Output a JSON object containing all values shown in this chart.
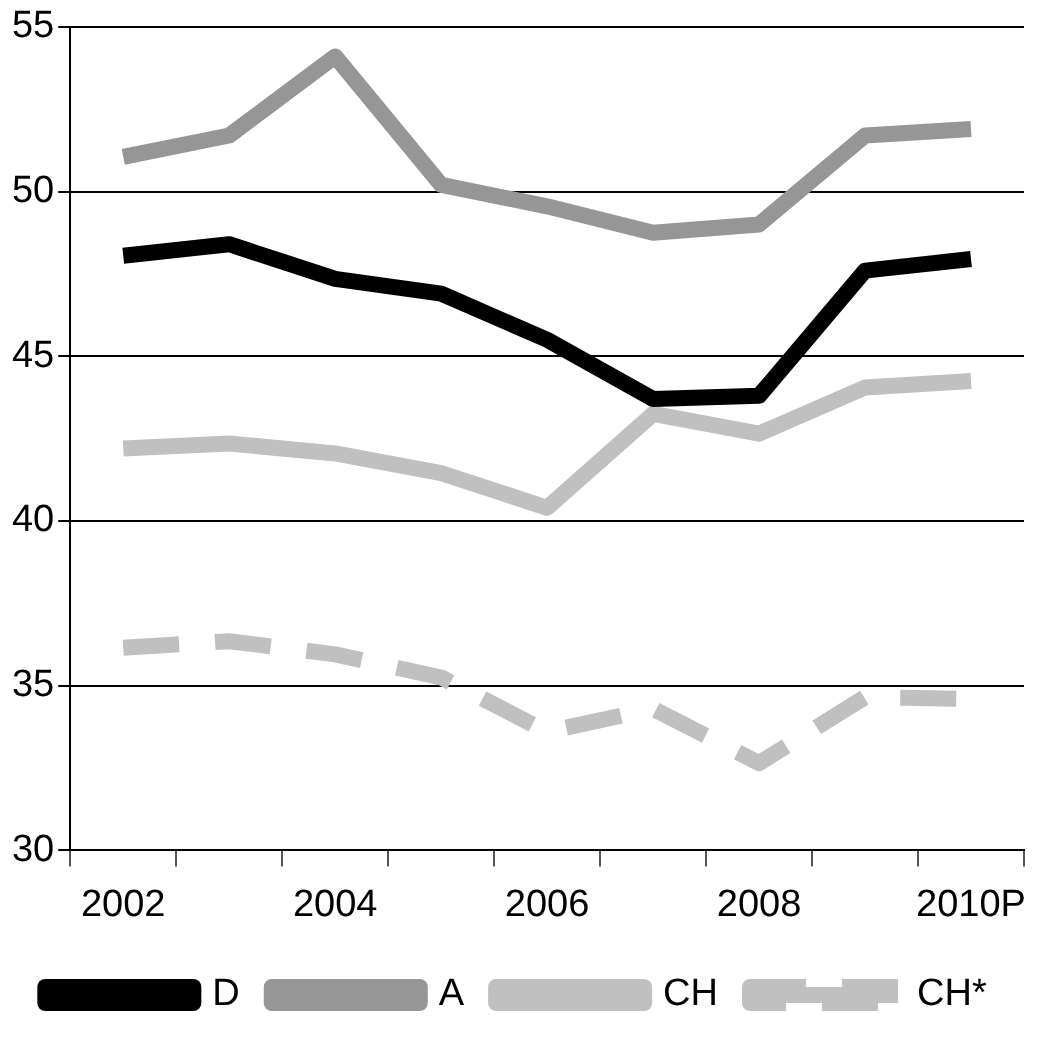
{
  "chart_data": {
    "type": "line",
    "categories": [
      "2002",
      null,
      "2004",
      null,
      "2006",
      null,
      "2008",
      null,
      "2010P"
    ],
    "series": [
      {
        "name": "D",
        "color": "#000000",
        "values": [
          48.05,
          48.4,
          47.35,
          46.9,
          45.5,
          43.7,
          43.8,
          47.6,
          47.95
        ]
      },
      {
        "name": "A",
        "color": "#969696",
        "values": [
          51.05,
          51.7,
          54.1,
          50.2,
          49.55,
          48.75,
          49.0,
          51.7,
          51.9
        ]
      },
      {
        "name": "CH",
        "color": "#c0c0c0",
        "values": [
          42.2,
          42.35,
          42.05,
          41.45,
          40.4,
          43.25,
          42.65,
          44.05,
          44.25
        ]
      },
      {
        "name": "CH*",
        "color": "#c0c0c0",
        "line_style": "dashed",
        "values": [
          36.15,
          36.35,
          35.95,
          35.25,
          33.6,
          34.3,
          32.65,
          34.65,
          34.6
        ]
      }
    ],
    "ylim": [
      30,
      55
    ],
    "yticks": [
      30,
      35,
      40,
      45,
      50,
      55
    ],
    "grid": "y",
    "legend": "bottom",
    "marker": "none"
  }
}
